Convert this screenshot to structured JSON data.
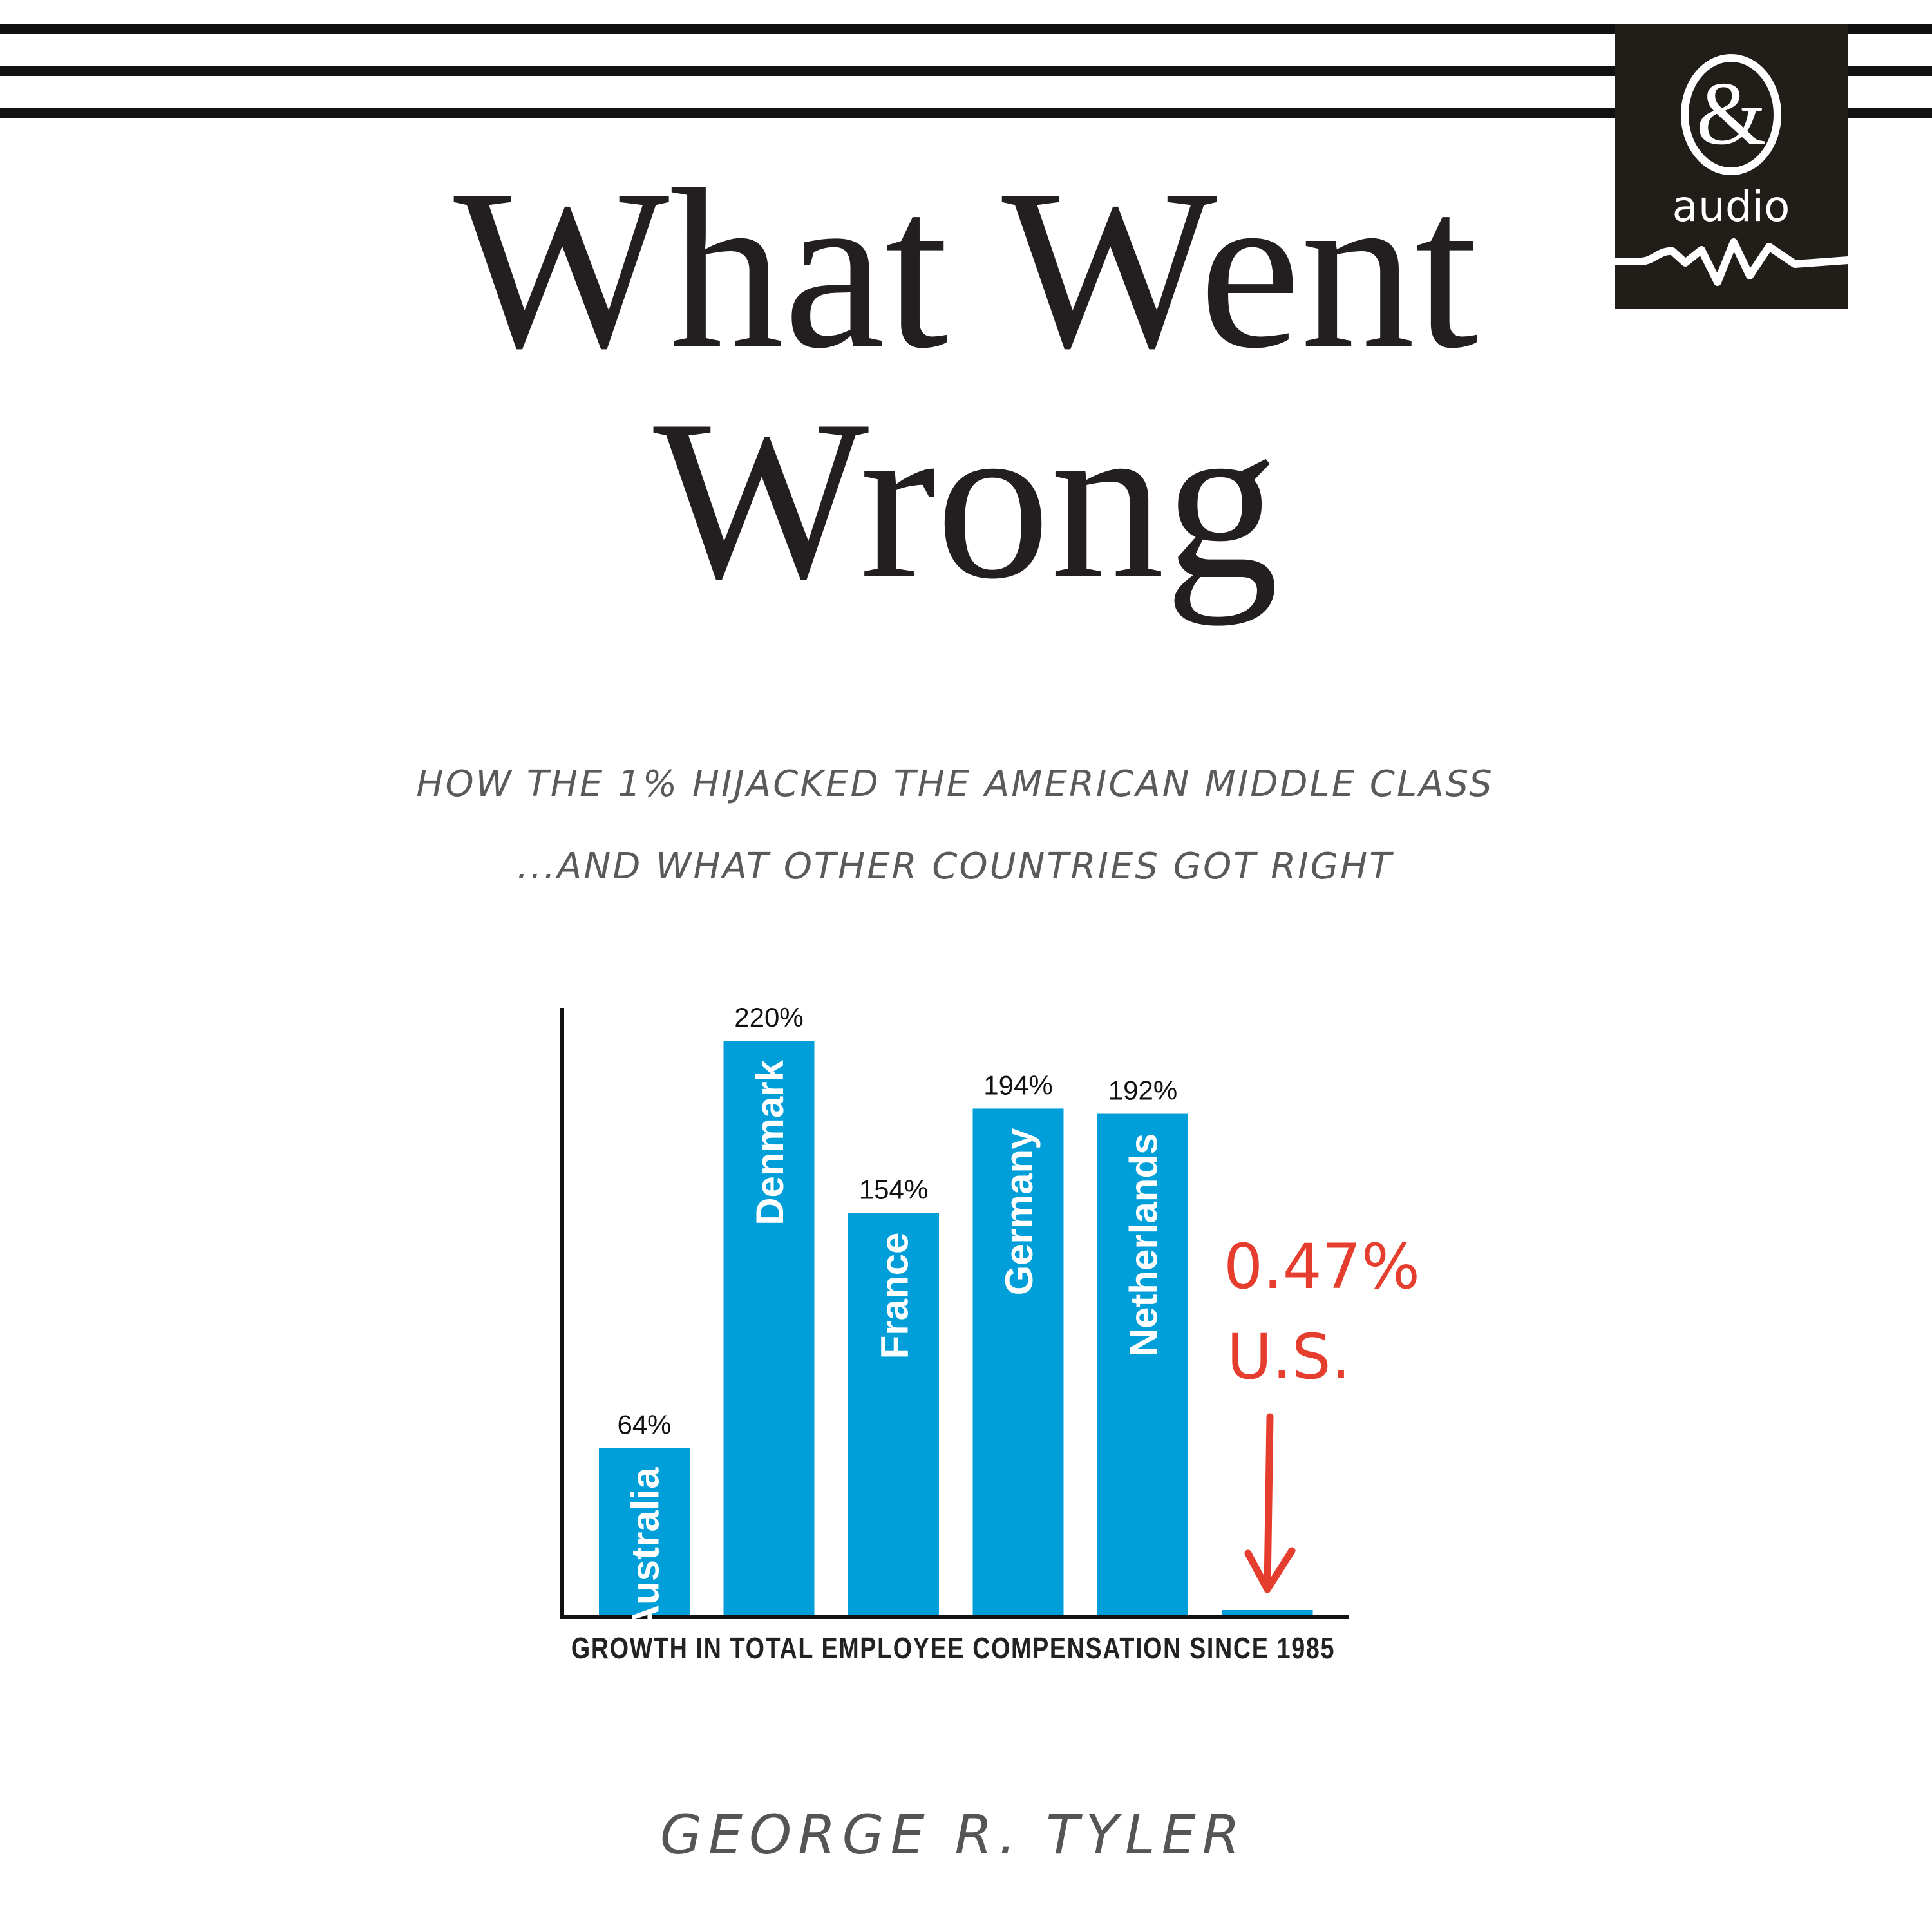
{
  "logo": {
    "text": "audio",
    "symbol": "&",
    "background": "#211d19"
  },
  "title": {
    "line1": "What Went",
    "line2": "Wrong"
  },
  "subtitle": {
    "line1": "How the 1% hijacked the American middle class",
    "line2": "...and what other countries got right"
  },
  "author": "GEORGE R. TYLER",
  "chart_data": {
    "type": "bar",
    "categories": [
      "Australia",
      "Denmark",
      "France",
      "Germany",
      "Netherlands",
      "U.S."
    ],
    "values": [
      64,
      220,
      154,
      194,
      192,
      0.47
    ],
    "value_labels": [
      "64%",
      "220%",
      "154%",
      "194%",
      "192%",
      "0.47%"
    ],
    "xlabel": "GROWTH IN TOTAL EMPLOYEE COMPENSATION SINCE 1985",
    "ylabel": "",
    "ylim": [
      0,
      240
    ],
    "grid": false,
    "bar_color": "#009fda",
    "annotation_color": "#e63e2e",
    "annotation": {
      "value": "0.47%",
      "label": "U.S."
    }
  }
}
